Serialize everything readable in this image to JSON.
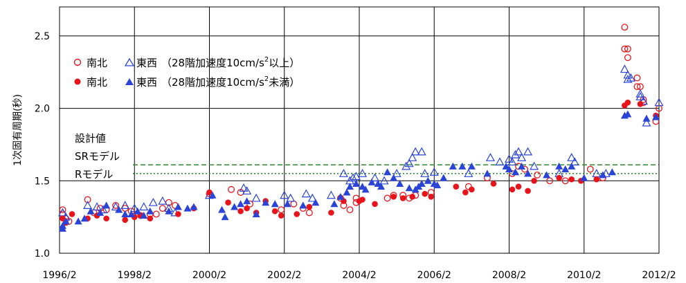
{
  "chart_data": {
    "type": "scatter",
    "ylabel": "1次固有周期(秒)",
    "ylim": [
      1.0,
      2.7
    ],
    "xlim": [
      "1996/2",
      "2012/2"
    ],
    "xticks": [
      "1996/2",
      "1998/2",
      "2000/2",
      "2002/2",
      "2004/2",
      "2006/2",
      "2008/2",
      "2010/2",
      "2012/2"
    ],
    "yticks": [
      "1.0",
      "1.5",
      "2.0",
      "2.5"
    ],
    "grid": true,
    "legend": {
      "placement": "top-left",
      "rows": [
        {
          "ns_label": "南北",
          "ew_label": "東西",
          "prefix": "（28階加速度10cm/s",
          "sup": "2",
          "suffix": "以上）"
        },
        {
          "ns_label": "南北",
          "ew_label": "東西",
          "prefix": "（28階加速度10cm/s",
          "sup": "2",
          "suffix": "未満）"
        }
      ]
    },
    "reference_lines": [
      {
        "label": "設計値",
        "style": "none"
      },
      {
        "label": "SRモデル",
        "value": 1.61,
        "style": "dashed",
        "color": "#2e8b2e"
      },
      {
        "label": "Rモデル",
        "value": 1.55,
        "style": "dotted",
        "color": "#2e8b2e"
      }
    ],
    "series": [
      {
        "name": "南北（28階加速度10cm/s2以上）",
        "marker": "open-circle",
        "color": "#e8141b",
        "points": [
          [
            "1996/3",
            1.3
          ],
          [
            "1996/3",
            1.27
          ],
          [
            "1996/4",
            1.24
          ],
          [
            "1996/5",
            1.22
          ],
          [
            "1996/11",
            1.37
          ],
          [
            "1997/1",
            1.28
          ],
          [
            "1997/3",
            1.31
          ],
          [
            "1997/5",
            1.3
          ],
          [
            "1997/8",
            1.33
          ],
          [
            "1997/11",
            1.31
          ],
          [
            "1998/1",
            1.29
          ],
          [
            "1998/4",
            1.26
          ],
          [
            "1998/7",
            1.27
          ],
          [
            "1998/9",
            1.27
          ],
          [
            "1998/11",
            1.31
          ],
          [
            "1999/1",
            1.35
          ],
          [
            "1999/3",
            1.33
          ],
          [
            "2000/2",
            1.41
          ],
          [
            "2000/9",
            1.44
          ],
          [
            "2000/12",
            1.42
          ],
          [
            "2001/3",
            1.34
          ],
          [
            "2002/1",
            1.3
          ],
          [
            "2002/5",
            1.34
          ],
          [
            "2002/8",
            1.31
          ],
          [
            "2002/10",
            1.28
          ],
          [
            "2003/8",
            1.38
          ],
          [
            "2003/9",
            1.33
          ],
          [
            "2003/11",
            1.3
          ],
          [
            "2004/1",
            1.38
          ],
          [
            "2004/1",
            1.35
          ],
          [
            "2004/11",
            1.38
          ],
          [
            "2005/1",
            1.4
          ],
          [
            "2005/4",
            1.4
          ],
          [
            "2005/6",
            1.38
          ],
          [
            "2005/8",
            1.4
          ],
          [
            "2006/1",
            1.42
          ],
          [
            "2007/1",
            1.46
          ],
          [
            "2007/7",
            1.52
          ],
          [
            "2008/3",
            1.55
          ],
          [
            "2008/5",
            1.6
          ],
          [
            "2008/7",
            1.58
          ],
          [
            "2008/11",
            1.54
          ],
          [
            "2009/3",
            1.5
          ],
          [
            "2009/8",
            1.5
          ],
          [
            "2010/4",
            1.58
          ],
          [
            "2010/8",
            1.52
          ],
          [
            "2011/3",
            2.56
          ],
          [
            "2011/3",
            2.41
          ],
          [
            "2011/4",
            2.41
          ],
          [
            "2011/4",
            2.35
          ],
          [
            "2011/7",
            2.21
          ],
          [
            "2011/7",
            2.15
          ],
          [
            "2011/8",
            2.15
          ],
          [
            "2011/9",
            2.06
          ],
          [
            "2011/9",
            2.04
          ],
          [
            "2012/1",
            1.91
          ],
          [
            "2012/2",
            2.0
          ]
        ]
      },
      {
        "name": "東西（28階加速度10cm/s2以上）",
        "marker": "open-triangle",
        "color": "#2a44d8",
        "points": [
          [
            "1996/3",
            1.28
          ],
          [
            "1996/4",
            1.25
          ],
          [
            "1996/11",
            1.33
          ],
          [
            "1997/2",
            1.32
          ],
          [
            "1997/4",
            1.3
          ],
          [
            "1997/8",
            1.32
          ],
          [
            "1997/11",
            1.33
          ],
          [
            "1998/2",
            1.31
          ],
          [
            "1998/5",
            1.32
          ],
          [
            "1998/8",
            1.35
          ],
          [
            "1998/11",
            1.36
          ],
          [
            "1999/1",
            1.31
          ],
          [
            "1999/3",
            1.28
          ],
          [
            "2000/2",
            1.4
          ],
          [
            "2001/1",
            1.45
          ],
          [
            "2001/2",
            1.43
          ],
          [
            "2001/5",
            1.38
          ],
          [
            "2002/2",
            1.4
          ],
          [
            "2002/4",
            1.38
          ],
          [
            "2002/9",
            1.41
          ],
          [
            "2002/11",
            1.38
          ],
          [
            "2003/5",
            1.4
          ],
          [
            "2003/9",
            1.55
          ],
          [
            "2003/11",
            1.5
          ],
          [
            "2003/12",
            1.52
          ],
          [
            "2004/1",
            1.53
          ],
          [
            "2004/3",
            1.55
          ],
          [
            "2004/7",
            1.52
          ],
          [
            "2004/10",
            1.5
          ],
          [
            "2005/2",
            1.55
          ],
          [
            "2005/5",
            1.6
          ],
          [
            "2005/6",
            1.62
          ],
          [
            "2005/7",
            1.66
          ],
          [
            "2005/8",
            1.7
          ],
          [
            "2005/10",
            1.7
          ],
          [
            "2005/11",
            1.55
          ],
          [
            "2006/2",
            1.56
          ],
          [
            "2007/1",
            1.55
          ],
          [
            "2007/8",
            1.66
          ],
          [
            "2007/11",
            1.63
          ],
          [
            "2008/2",
            1.65
          ],
          [
            "2008/3",
            1.63
          ],
          [
            "2008/4",
            1.68
          ],
          [
            "2008/5",
            1.7
          ],
          [
            "2008/6",
            1.66
          ],
          [
            "2008/8",
            1.7
          ],
          [
            "2008/10",
            1.6
          ],
          [
            "2009/6",
            1.55
          ],
          [
            "2009/10",
            1.66
          ],
          [
            "2009/11",
            1.63
          ],
          [
            "2010/6",
            1.55
          ],
          [
            "2010/9",
            1.55
          ],
          [
            "2011/3",
            2.27
          ],
          [
            "2011/4",
            2.23
          ],
          [
            "2011/4",
            2.2
          ],
          [
            "2011/5",
            2.21
          ],
          [
            "2011/8",
            2.1
          ],
          [
            "2011/8",
            2.08
          ],
          [
            "2011/9",
            2.05
          ],
          [
            "2011/10",
            1.9
          ],
          [
            "2012/2",
            2.04
          ]
        ]
      },
      {
        "name": "南北（28階加速度10cm/s2未満）",
        "marker": "filled-circle",
        "color": "#e8141b",
        "points": [
          [
            "1996/3",
            1.24
          ],
          [
            "1996/4",
            1.21
          ],
          [
            "1996/6",
            1.27
          ],
          [
            "1996/11",
            1.24
          ],
          [
            "1997/2",
            1.26
          ],
          [
            "1997/5",
            1.24
          ],
          [
            "1997/11",
            1.23
          ],
          [
            "1998/2",
            1.25
          ],
          [
            "1998/4",
            1.26
          ],
          [
            "1998/7",
            1.24
          ],
          [
            "1999/4",
            1.27
          ],
          [
            "1999/9",
            1.31
          ],
          [
            "2000/2",
            1.42
          ],
          [
            "2000/8",
            1.35
          ],
          [
            "2000/12",
            1.29
          ],
          [
            "2001/2",
            1.31
          ],
          [
            "2001/5",
            1.28
          ],
          [
            "2001/8",
            1.36
          ],
          [
            "2001/11",
            1.29
          ],
          [
            "2002/1",
            1.26
          ],
          [
            "2002/6",
            1.27
          ],
          [
            "2002/10",
            1.32
          ],
          [
            "2003/5",
            1.28
          ],
          [
            "2003/9",
            1.36
          ],
          [
            "2004/2",
            1.36
          ],
          [
            "2004/3",
            1.37
          ],
          [
            "2004/7",
            1.34
          ],
          [
            "2005/1",
            1.39
          ],
          [
            "2005/4",
            1.38
          ],
          [
            "2005/7",
            1.39
          ],
          [
            "2005/11",
            1.41
          ],
          [
            "2006/1",
            1.39
          ],
          [
            "2006/9",
            1.46
          ],
          [
            "2006/12",
            1.42
          ],
          [
            "2007/2",
            1.44
          ],
          [
            "2007/9",
            1.48
          ],
          [
            "2008/3",
            1.44
          ],
          [
            "2008/5",
            1.46
          ],
          [
            "2008/8",
            1.43
          ],
          [
            "2008/10",
            1.5
          ],
          [
            "2009/6",
            1.52
          ],
          [
            "2009/10",
            1.51
          ],
          [
            "2010/1",
            1.5
          ],
          [
            "2010/6",
            1.51
          ],
          [
            "2011/3",
            2.02
          ],
          [
            "2011/4",
            2.04
          ],
          [
            "2011/8",
            2.03
          ],
          [
            "2012/1",
            1.95
          ]
        ]
      },
      {
        "name": "東西（28階加速度10cm/s2未満）",
        "marker": "filled-triangle",
        "color": "#2a44d8",
        "points": [
          [
            "1996/3",
            1.17
          ],
          [
            "1996/3",
            1.19
          ],
          [
            "1996/4",
            1.22
          ],
          [
            "1996/8",
            1.22
          ],
          [
            "1996/10",
            1.24
          ],
          [
            "1996/12",
            1.29
          ],
          [
            "1997/3",
            1.28
          ],
          [
            "1997/5",
            1.33
          ],
          [
            "1997/9",
            1.3
          ],
          [
            "1997/11",
            1.27
          ],
          [
            "1998/1",
            1.27
          ],
          [
            "1998/3",
            1.29
          ],
          [
            "1998/5",
            1.26
          ],
          [
            "1998/7",
            1.29
          ],
          [
            "1999/1",
            1.29
          ],
          [
            "1999/4",
            1.32
          ],
          [
            "1999/7",
            1.31
          ],
          [
            "1999/9",
            1.32
          ],
          [
            "2000/3",
            1.4
          ],
          [
            "2000/6",
            1.3
          ],
          [
            "2000/7",
            1.25
          ],
          [
            "2000/10",
            1.32
          ],
          [
            "2000/12",
            1.34
          ],
          [
            "2001/2",
            1.36
          ],
          [
            "2001/5",
            1.27
          ],
          [
            "2001/8",
            1.35
          ],
          [
            "2001/11",
            1.34
          ],
          [
            "2002/3",
            1.34
          ],
          [
            "2002/8",
            1.33
          ],
          [
            "2002/12",
            1.35
          ],
          [
            "2003/6",
            1.34
          ],
          [
            "2003/8",
            1.39
          ],
          [
            "2003/10",
            1.42
          ],
          [
            "2003/11",
            1.46
          ],
          [
            "2004/1",
            1.48
          ],
          [
            "2004/3",
            1.46
          ],
          [
            "2004/4",
            1.44
          ],
          [
            "2004/6",
            1.49
          ],
          [
            "2004/8",
            1.48
          ],
          [
            "2004/9",
            1.46
          ],
          [
            "2004/11",
            1.56
          ],
          [
            "2005/1",
            1.52
          ],
          [
            "2005/3",
            1.48
          ],
          [
            "2005/6",
            1.45
          ],
          [
            "2005/8",
            1.44
          ],
          [
            "2005/9",
            1.46
          ],
          [
            "2005/10",
            1.48
          ],
          [
            "2005/12",
            1.5
          ],
          [
            "2006/2",
            1.48
          ],
          [
            "2006/3",
            1.47
          ],
          [
            "2006/5",
            1.52
          ],
          [
            "2006/8",
            1.6
          ],
          [
            "2006/11",
            1.6
          ],
          [
            "2007/2",
            1.6
          ],
          [
            "2007/7",
            1.55
          ],
          [
            "2008/1",
            1.6
          ],
          [
            "2008/2",
            1.58
          ],
          [
            "2008/4",
            1.56
          ],
          [
            "2008/6",
            1.6
          ],
          [
            "2008/8",
            1.55
          ],
          [
            "2009/2",
            1.54
          ],
          [
            "2009/6",
            1.6
          ],
          [
            "2009/8",
            1.58
          ],
          [
            "2009/10",
            1.6
          ],
          [
            "2010/2",
            1.52
          ],
          [
            "2010/8",
            1.54
          ],
          [
            "2010/11",
            1.56
          ],
          [
            "2011/3",
            1.95
          ],
          [
            "2011/4",
            1.96
          ],
          [
            "2011/10",
            1.93
          ],
          [
            "2012/1",
            1.94
          ]
        ]
      }
    ]
  }
}
